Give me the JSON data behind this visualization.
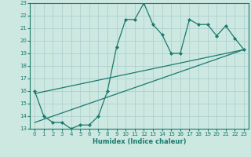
{
  "title": "",
  "xlabel": "Humidex (Indice chaleur)",
  "ylabel": "",
  "background_color": "#cce8e0",
  "grid_color": "#aacccc",
  "line_color": "#1a7a6e",
  "xlim": [
    -0.5,
    23.5
  ],
  "ylim": [
    13,
    23
  ],
  "xticks": [
    0,
    1,
    2,
    3,
    4,
    5,
    6,
    7,
    8,
    9,
    10,
    11,
    12,
    13,
    14,
    15,
    16,
    17,
    18,
    19,
    20,
    21,
    22,
    23
  ],
  "yticks": [
    13,
    14,
    15,
    16,
    17,
    18,
    19,
    20,
    21,
    22,
    23
  ],
  "main_x": [
    0,
    1,
    2,
    3,
    4,
    5,
    6,
    7,
    8,
    9,
    10,
    11,
    12,
    13,
    14,
    15,
    16,
    17,
    18,
    19,
    20,
    21,
    22,
    23
  ],
  "main_y": [
    16,
    14,
    13.5,
    13.5,
    13,
    13.3,
    13.3,
    14,
    16,
    19.5,
    21.7,
    21.7,
    23,
    21.3,
    20.5,
    19,
    19,
    21.7,
    21.3,
    21.3,
    20.4,
    21.2,
    20.2,
    19.3
  ],
  "line1_x": [
    0,
    23
  ],
  "line1_y": [
    15.8,
    19.3
  ],
  "line2_x": [
    0,
    23
  ],
  "line2_y": [
    13.5,
    19.3
  ]
}
